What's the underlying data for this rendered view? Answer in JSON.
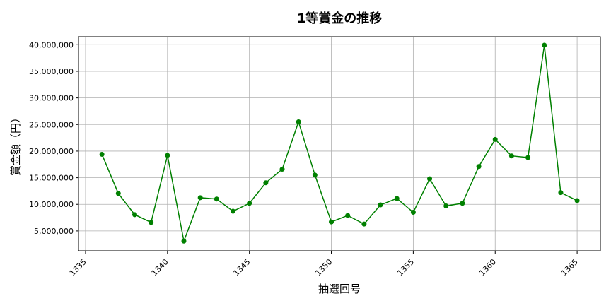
{
  "chart_data": {
    "type": "line",
    "title": "1等賞金の推移",
    "xlabel": "抽選回号",
    "ylabel": "賞金額（円）",
    "x": [
      1336,
      1337,
      1338,
      1339,
      1340,
      1341,
      1342,
      1343,
      1344,
      1345,
      1346,
      1347,
      1348,
      1349,
      1350,
      1351,
      1352,
      1353,
      1354,
      1355,
      1356,
      1357,
      1358,
      1359,
      1360,
      1361,
      1362,
      1363,
      1364,
      1365
    ],
    "series": [
      {
        "values": [
          19400000,
          12050000,
          8060000,
          6600000,
          19200000,
          3100000,
          11250000,
          11000000,
          8700000,
          10200000,
          14050000,
          16600000,
          25500000,
          15500000,
          6700000,
          7900000,
          6300000,
          9900000,
          11100000,
          8500000,
          14800000,
          9700000,
          10200000,
          17100000,
          22200000,
          19100000,
          18800000,
          39900000,
          12200000,
          10700000
        ],
        "color": "#008000",
        "marker": "circle"
      }
    ],
    "xlim": [
      1334.57,
      1366.42
    ],
    "ylim": [
      1270000,
      41500000
    ],
    "xticks": [
      1335,
      1340,
      1345,
      1350,
      1355,
      1360,
      1365
    ],
    "yticks": [
      5000000,
      10000000,
      15000000,
      20000000,
      25000000,
      30000000,
      35000000,
      40000000
    ],
    "ytick_labels": [
      "5,000,000",
      "10,000,000",
      "15,000,000",
      "20,000,000",
      "25,000,000",
      "30,000,000",
      "35,000,000",
      "40,000,000"
    ],
    "grid": true
  }
}
